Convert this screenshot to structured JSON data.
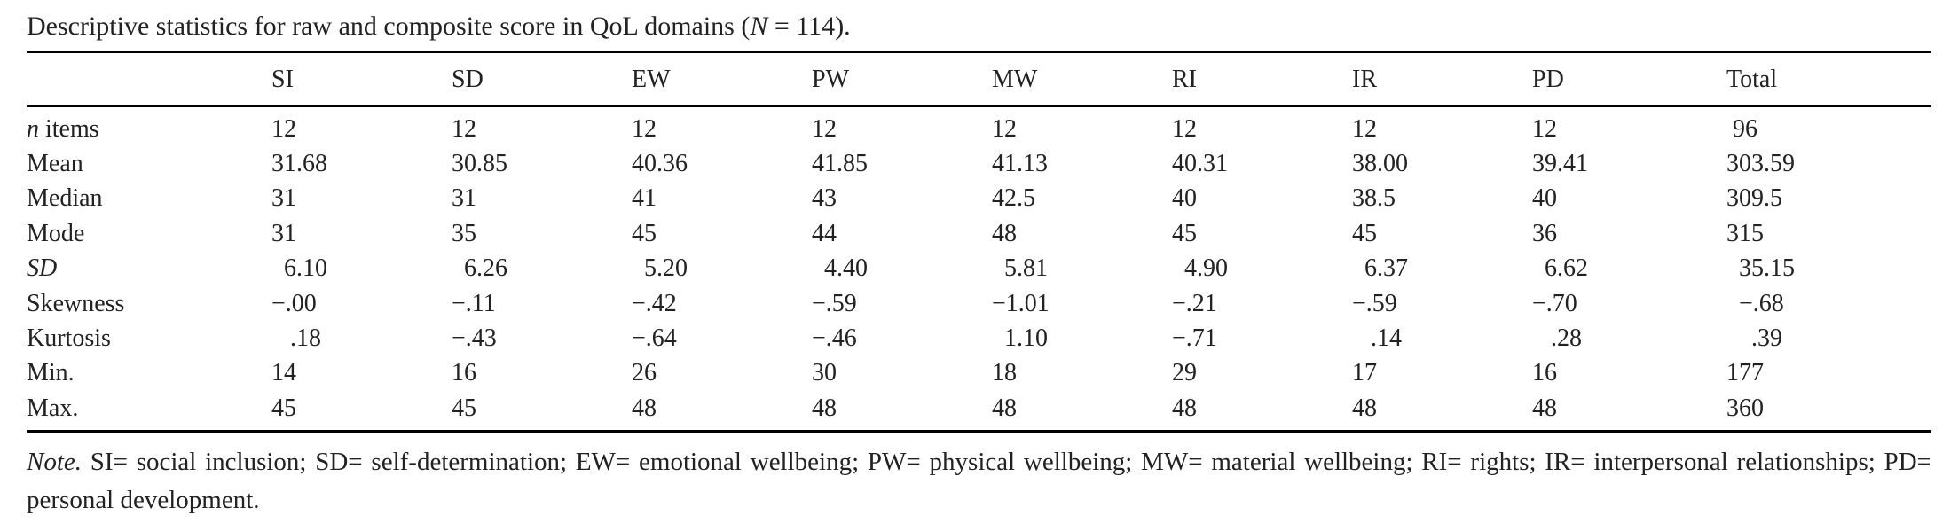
{
  "caption": {
    "prefix": "Descriptive statistics for raw and composite score in QoL domains (",
    "n_symbol": "N",
    "n_equals": " = 114",
    "suffix": ")."
  },
  "table": {
    "columns": [
      "",
      "SI",
      "SD",
      "EW",
      "PW",
      "MW",
      "RI",
      "IR",
      "PD",
      "Total"
    ],
    "rows": [
      {
        "label_italic": "n",
        "label_rest": " items",
        "values": [
          "12",
          "12",
          "12",
          "12",
          "12",
          "12",
          "12",
          "12",
          " 96"
        ]
      },
      {
        "label_italic": "",
        "label_rest": "Mean",
        "values": [
          "31.68",
          "30.85",
          "40.36",
          "41.85",
          "41.13",
          "40.31",
          "38.00",
          "39.41",
          "303.59"
        ]
      },
      {
        "label_italic": "",
        "label_rest": "Median",
        "values": [
          "31",
          "31",
          "41",
          "43",
          "42.5",
          "40",
          "38.5",
          "40",
          "309.5"
        ]
      },
      {
        "label_italic": "",
        "label_rest": "Mode",
        "values": [
          "31",
          "35",
          "45",
          "44",
          "48",
          "45",
          "45",
          "36",
          "315"
        ]
      },
      {
        "label_italic": "SD",
        "label_rest": "",
        "values": [
          "  6.10",
          "  6.26",
          "  5.20",
          "  4.40",
          "  5.81",
          "  4.90",
          "  6.37",
          "  6.62",
          "  35.15"
        ]
      },
      {
        "label_italic": "",
        "label_rest": "Skewness",
        "values": [
          "−.00",
          "−.11",
          "−.42",
          "−.59",
          "−1.01",
          "−.21",
          "−.59",
          "−.70",
          "  −.68"
        ]
      },
      {
        "label_italic": "",
        "label_rest": "Kurtosis",
        "values": [
          "   .18",
          "−.43",
          "−.64",
          "−.46",
          "  1.10",
          "−.71",
          "   .14",
          "   .28",
          "    .39"
        ]
      },
      {
        "label_italic": "",
        "label_rest": "Min.",
        "values": [
          "14",
          "16",
          "26",
          "30",
          "18",
          "29",
          "17",
          "16",
          "177"
        ]
      },
      {
        "label_italic": "",
        "label_rest": "Max.",
        "values": [
          "45",
          "45",
          "48",
          "48",
          "48",
          "48",
          "48",
          "48",
          "360"
        ]
      }
    ]
  },
  "note": {
    "label": "Note.",
    "text": " SI= social inclusion; SD= self-determination; EW= emotional wellbeing; PW= physical wellbeing; MW= material wellbeing; RI= rights; IR= interpersonal relationships; PD= personal development."
  }
}
